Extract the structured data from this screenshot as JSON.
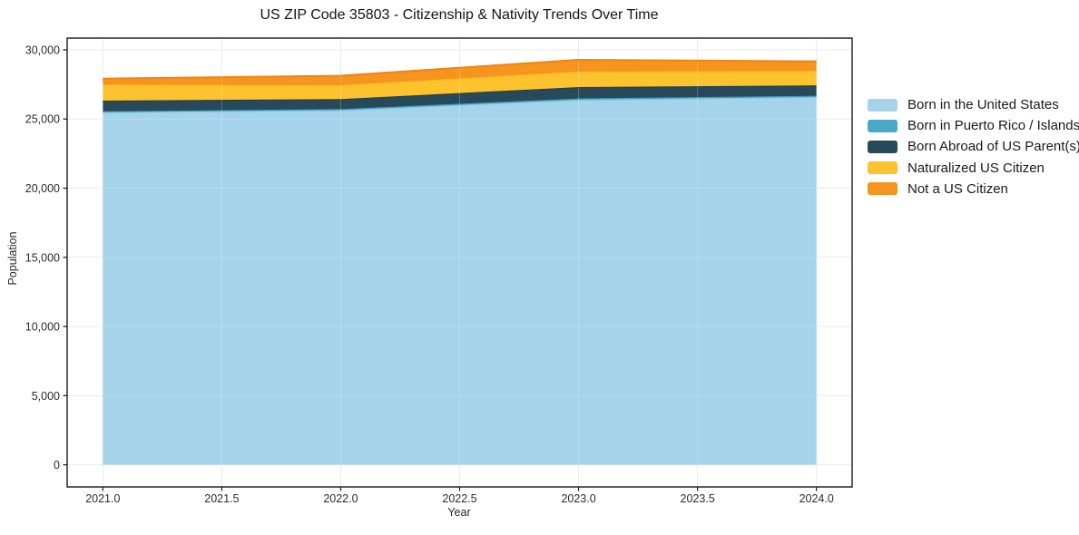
{
  "chart_data": {
    "type": "area",
    "stacked": true,
    "title": "US ZIP Code 35803 - Citizenship & Nativity Trends Over Time",
    "xlabel": "Year",
    "ylabel": "Population",
    "x": [
      2021,
      2022,
      2023,
      2024
    ],
    "series": [
      {
        "name": "Born in the United States",
        "values": [
          25500,
          25650,
          26400,
          26600
        ],
        "fill": "#a5d3e9",
        "edge": "#82c0de"
      },
      {
        "name": "Born in Puerto Rico / Islands",
        "values": [
          60,
          70,
          90,
          80
        ],
        "fill": "#4ba7c7",
        "edge": "#3d9bbd"
      },
      {
        "name": "Born Abroad of US Parent(s)",
        "values": [
          770,
          720,
          820,
          750
        ],
        "fill": "#27495a",
        "edge": "#203f4f"
      },
      {
        "name": "Naturalized US Citizen",
        "values": [
          1160,
          1010,
          1120,
          1040
        ],
        "fill": "#fdc32f",
        "edge": "#fcb916"
      },
      {
        "name": "Not a US Citizen",
        "values": [
          430,
          680,
          850,
          700
        ],
        "fill": "#f5941f",
        "edge": "#f08511"
      }
    ],
    "xticks": [
      {
        "v": 2021.0,
        "label": "2021.0"
      },
      {
        "v": 2021.5,
        "label": "2021.5"
      },
      {
        "v": 2022.0,
        "label": "2022.0"
      },
      {
        "v": 2022.5,
        "label": "2022.5"
      },
      {
        "v": 2023.0,
        "label": "2023.0"
      },
      {
        "v": 2023.5,
        "label": "2023.5"
      },
      {
        "v": 2024.0,
        "label": "2024.0"
      }
    ],
    "yticks": [
      {
        "v": 0,
        "label": "0"
      },
      {
        "v": 5000,
        "label": "5,000"
      },
      {
        "v": 10000,
        "label": "10,000"
      },
      {
        "v": 15000,
        "label": "15,000"
      },
      {
        "v": 20000,
        "label": "20,000"
      },
      {
        "v": 25000,
        "label": "25,000"
      },
      {
        "v": 30000,
        "label": "30,000"
      }
    ],
    "xlim": [
      2020.85,
      2024.15
    ],
    "ylim": [
      -1600,
      30850
    ],
    "grid": true,
    "legend_position": "right-outside",
    "colors": {
      "grid": "#eaeaea",
      "spine": "#1a1a1a",
      "tick_text": "#2b2b2b"
    }
  }
}
